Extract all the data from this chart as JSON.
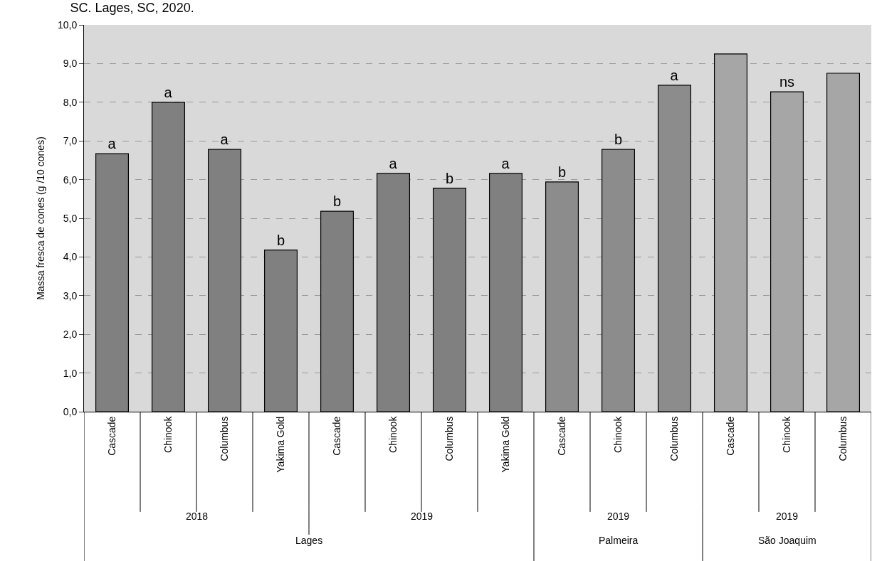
{
  "chart_data": {
    "type": "bar",
    "title": "SC. Lages, SC, 2020.",
    "ylabel": "Massa fresca de cones (g /10 cones)",
    "categories": [
      "Cascade",
      "Chinook",
      "Columbus",
      "Yakima Gold",
      "Cascade",
      "Chinook",
      "Columbus",
      "Yakima Gold",
      "Cascade",
      "Chinook",
      "Columbus",
      "Cascade",
      "Chinook",
      "Columbus"
    ],
    "values": [
      6.67,
      8.0,
      6.78,
      4.18,
      5.18,
      6.16,
      5.78,
      6.16,
      5.94,
      6.78,
      8.44,
      9.25,
      8.27,
      8.75
    ],
    "colors": [
      "#808080",
      "#808080",
      "#808080",
      "#808080",
      "#808080",
      "#808080",
      "#808080",
      "#808080",
      "#8c8c8c",
      "#8c8c8c",
      "#8c8c8c",
      "#a6a6a6",
      "#a6a6a6",
      "#a6a6a6"
    ],
    "value_labels": [
      "a",
      "a",
      "a",
      "b",
      "b",
      "a",
      "b",
      "a",
      "b",
      "b",
      "a",
      null,
      "ns",
      null
    ],
    "annotations": [
      "2018",
      "2019",
      "2019",
      "2019",
      "Lages",
      "Palmeira",
      "São Joaquim"
    ],
    "ylim": [
      0,
      10
    ],
    "yticks": [
      {
        "value": 0,
        "label": "0,0"
      },
      {
        "value": 1,
        "label": "1,0"
      },
      {
        "value": 2,
        "label": "2,0"
      },
      {
        "value": 3,
        "label": "3,0"
      },
      {
        "value": 4,
        "label": "4,0"
      },
      {
        "value": 5,
        "label": "5,0"
      },
      {
        "value": 6,
        "label": "6,0"
      },
      {
        "value": 7,
        "label": "7,0"
      },
      {
        "value": 8,
        "label": "8,0"
      },
      {
        "value": 9,
        "label": "9,0"
      },
      {
        "value": 10,
        "label": "10,0"
      }
    ],
    "grid": "y",
    "legend": false
  }
}
